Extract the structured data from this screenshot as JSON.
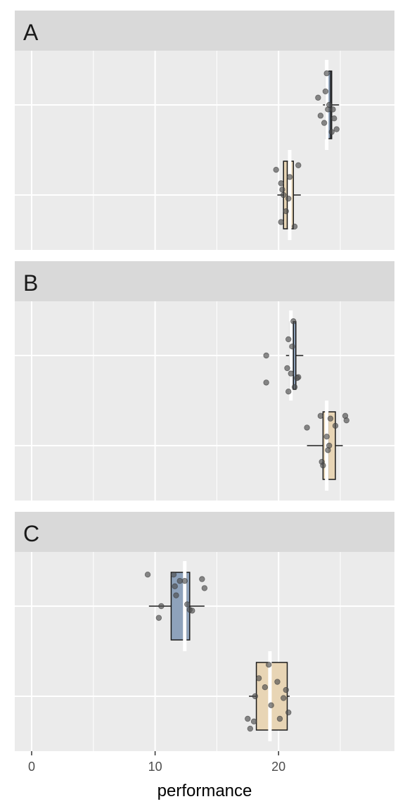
{
  "chart_data": {
    "type": "box-jitter-faceted",
    "xlabel": "performance",
    "x_ticks": [
      0,
      10,
      20
    ],
    "xlim": [
      -0.5,
      29
    ],
    "grid": true,
    "colors": {
      "upper_fill": "#8ea2bb",
      "lower_fill": "#e8d5b5",
      "panel_bg": "#ebebeb",
      "strip_bg": "#d9d9d9",
      "grid": "#ffffff",
      "box_line": "#1a1a1a",
      "point": "#4d4d4d"
    },
    "panels": [
      {
        "label": "A",
        "groups": [
          {
            "row": "upper",
            "fill_key": "upper_fill",
            "box": {
              "q1": 23.8,
              "median": 24.2,
              "q3": 24.3,
              "whisker_low": 23.6,
              "whisker_high": 24.9
            },
            "white_line": {
              "x": 23.9,
              "lo": 23.6,
              "hi": 23.6
            },
            "points": [
              [
                23.9,
                0.35
              ],
              [
                23.2,
                0.08
              ],
              [
                24.0,
                -0.05
              ],
              [
                23.4,
                -0.12
              ],
              [
                23.7,
                -0.2
              ],
              [
                24.5,
                -0.15
              ],
              [
                24.7,
                -0.27
              ],
              [
                24.3,
                -0.3
              ],
              [
                24.1,
                0.0
              ],
              [
                23.8,
                0.15
              ],
              [
                24.4,
                -0.05
              ]
            ]
          },
          {
            "row": "lower",
            "fill_key": "lower_fill",
            "box": {
              "q1": 20.4,
              "median": 20.7,
              "q3": 21.2,
              "whisker_low": 19.9,
              "whisker_high": 21.8
            },
            "white_line": {
              "x": 20.9,
              "lo": 20.9,
              "hi": 20.9
            },
            "points": [
              [
                19.8,
                0.28
              ],
              [
                21.6,
                0.33
              ],
              [
                20.2,
                0.13
              ],
              [
                20.3,
                0.06
              ],
              [
                20.4,
                0.0
              ],
              [
                20.8,
                -0.04
              ],
              [
                20.2,
                -0.3
              ],
              [
                21.3,
                -0.35
              ],
              [
                20.6,
                -0.18
              ],
              [
                20.9,
                0.2
              ]
            ]
          }
        ]
      },
      {
        "label": "B",
        "groups": [
          {
            "row": "upper",
            "fill_key": "upper_fill",
            "box": {
              "q1": 20.9,
              "median": 21.2,
              "q3": 21.4,
              "whisker_low": 20.6,
              "whisker_high": 22.0
            },
            "white_line": {
              "x": 21.0,
              "lo": 21.0,
              "hi": 21.0
            },
            "points": [
              [
                21.2,
                0.38
              ],
              [
                20.8,
                0.18
              ],
              [
                19.0,
                0.0
              ],
              [
                20.7,
                -0.14
              ],
              [
                21.0,
                -0.2
              ],
              [
                21.6,
                -0.24
              ],
              [
                19.0,
                -0.3
              ],
              [
                20.8,
                -0.4
              ],
              [
                21.3,
                -0.35
              ],
              [
                21.5,
                -0.25
              ],
              [
                21.1,
                0.1
              ]
            ]
          },
          {
            "row": "lower",
            "fill_key": "lower_fill",
            "box": {
              "q1": 23.6,
              "median": 24.0,
              "q3": 24.6,
              "whisker_low": 22.3,
              "whisker_high": 25.2
            },
            "white_line": {
              "x": 23.9,
              "lo": 23.9,
              "hi": 23.9
            },
            "points": [
              [
                22.3,
                0.2
              ],
              [
                23.4,
                0.33
              ],
              [
                24.2,
                0.3
              ],
              [
                25.4,
                0.33
              ],
              [
                25.5,
                0.28
              ],
              [
                24.6,
                0.22
              ],
              [
                23.9,
                0.1
              ],
              [
                24.1,
                0.0
              ],
              [
                23.5,
                -0.18
              ],
              [
                23.6,
                -0.22
              ],
              [
                24.0,
                -0.05
              ]
            ]
          }
        ]
      },
      {
        "label": "C",
        "groups": [
          {
            "row": "upper",
            "fill_key": "upper_fill",
            "box": {
              "q1": 11.3,
              "median": 12.5,
              "q3": 12.8,
              "whisker_low": 9.5,
              "whisker_high": 14.0
            },
            "white_line": {
              "x": 12.4,
              "lo": 12.4,
              "hi": 12.4
            },
            "points": [
              [
                9.4,
                0.35
              ],
              [
                11.5,
                0.35
              ],
              [
                12.0,
                0.28
              ],
              [
                12.4,
                0.28
              ],
              [
                11.6,
                0.22
              ],
              [
                13.8,
                0.3
              ],
              [
                14.0,
                0.2
              ],
              [
                11.7,
                0.12
              ],
              [
                10.5,
                0.0
              ],
              [
                12.6,
                0.02
              ],
              [
                12.8,
                -0.04
              ],
              [
                10.3,
                -0.13
              ],
              [
                13.0,
                -0.05
              ]
            ]
          },
          {
            "row": "lower",
            "fill_key": "lower_fill",
            "box": {
              "q1": 18.2,
              "median": 19.3,
              "q3": 20.7,
              "whisker_low": 17.6,
              "whisker_high": 20.9
            },
            "white_line": {
              "x": 19.3,
              "lo": 19.3,
              "hi": 19.3
            },
            "points": [
              [
                19.2,
                0.35
              ],
              [
                18.4,
                0.2
              ],
              [
                19.9,
                0.16
              ],
              [
                20.6,
                0.07
              ],
              [
                18.1,
                0.0
              ],
              [
                20.4,
                -0.02
              ],
              [
                19.4,
                -0.1
              ],
              [
                20.1,
                -0.25
              ],
              [
                17.5,
                -0.25
              ],
              [
                18.0,
                -0.28
              ],
              [
                17.7,
                -0.36
              ],
              [
                20.8,
                -0.18
              ],
              [
                18.9,
                0.1
              ]
            ]
          }
        ]
      }
    ]
  }
}
